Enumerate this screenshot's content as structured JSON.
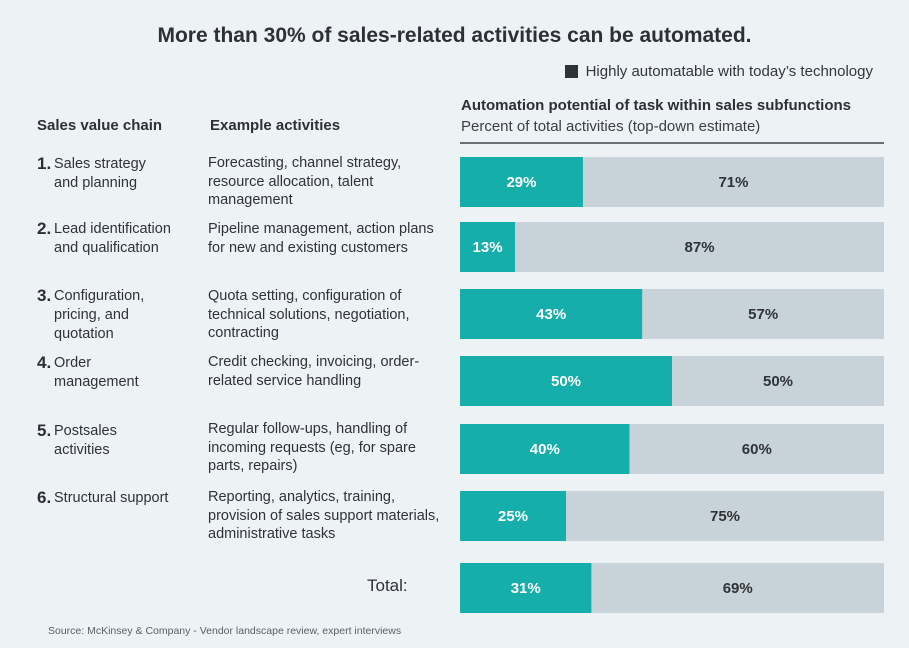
{
  "title": "More than 30% of sales-related activities can be automated.",
  "legend": {
    "label": "Highly automatable with today’s technology",
    "color": "#16aeab"
  },
  "headers": {
    "chain": "Sales value chain",
    "activities": "Example activities",
    "automation": "Automation potential of task within sales subfunctions",
    "automation_sub": "Percent of total activities (top-down estimate)"
  },
  "rows": [
    {
      "num": "1.",
      "label": "Sales strategy and planning",
      "activities": "Forecasting, channel strategy, resource allocation, talent management"
    },
    {
      "num": "2.",
      "label": "Lead identification and qualification",
      "activities": "Pipeline management, action plans for new and existing customers"
    },
    {
      "num": "3.",
      "label": "Configuration, pricing, and quotation",
      "activities": "Quota setting, configuration of technical solutions, negotiation, contracting"
    },
    {
      "num": "4.",
      "label": "Order management",
      "activities": "Credit checking, invoicing, order-related service handling"
    },
    {
      "num": "5.",
      "label": "Postsales activities",
      "activities": "Regular follow-ups, handling of incoming requests (eg, for spare parts, repairs)"
    },
    {
      "num": "6.",
      "label": "Structural support",
      "activities": "Reporting, analytics, training, provision of sales support materials, administrative tasks"
    }
  ],
  "total_label": "Total:",
  "source": "Source: McKinsey & Company - Vendor landscape review, expert interviews",
  "chart_data": {
    "type": "bar",
    "stacked": true,
    "orientation": "horizontal",
    "unit": "%",
    "categories": [
      "Sales strategy and planning",
      "Lead identification and qualification",
      "Configuration, pricing, and quotation",
      "Order management",
      "Postsales activities",
      "Structural support",
      "Total"
    ],
    "series": [
      {
        "name": "Highly automatable with today’s technology",
        "values": [
          29,
          13,
          43,
          50,
          40,
          25,
          31
        ],
        "color": "#16aeab",
        "label_color": "#ffffff"
      },
      {
        "values": [
          71,
          87,
          57,
          50,
          60,
          75,
          69
        ],
        "color": "#c7d2d9",
        "label_color": "#2f3338"
      }
    ],
    "xlim": [
      0,
      100
    ]
  }
}
